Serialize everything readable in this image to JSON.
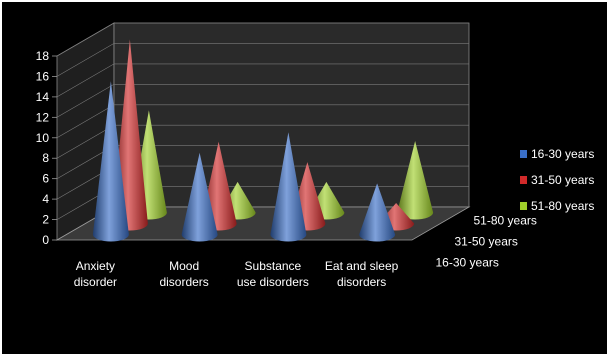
{
  "chart_data": {
    "type": "3d-cone",
    "categories": [
      "Anxiety disorder",
      "Mood disorders",
      "Substance use disorders",
      "Eat and sleep disorders"
    ],
    "category_lines": [
      [
        "Anxiety",
        "disorder"
      ],
      [
        "Mood",
        "disorders"
      ],
      [
        "Substance",
        "use disorders"
      ],
      [
        "Eat and sleep",
        "disorders"
      ]
    ],
    "series": [
      {
        "name": "16-30 years",
        "values": [
          15,
          8,
          10,
          5
        ],
        "color": "#3a6fc7"
      },
      {
        "name": "31-50 years",
        "values": [
          18,
          8,
          6,
          2
        ],
        "color": "#d12a2a"
      },
      {
        "name": "51-80 years",
        "values": [
          10,
          3,
          3,
          7
        ],
        "color": "#9fcf2a"
      }
    ],
    "y_ticks": [
      "0",
      "2",
      "4",
      "6",
      "8",
      "10",
      "12",
      "14",
      "16",
      "18"
    ],
    "ylim": [
      0,
      18
    ],
    "grid": true,
    "legend_position": "right",
    "background": "#000000"
  }
}
